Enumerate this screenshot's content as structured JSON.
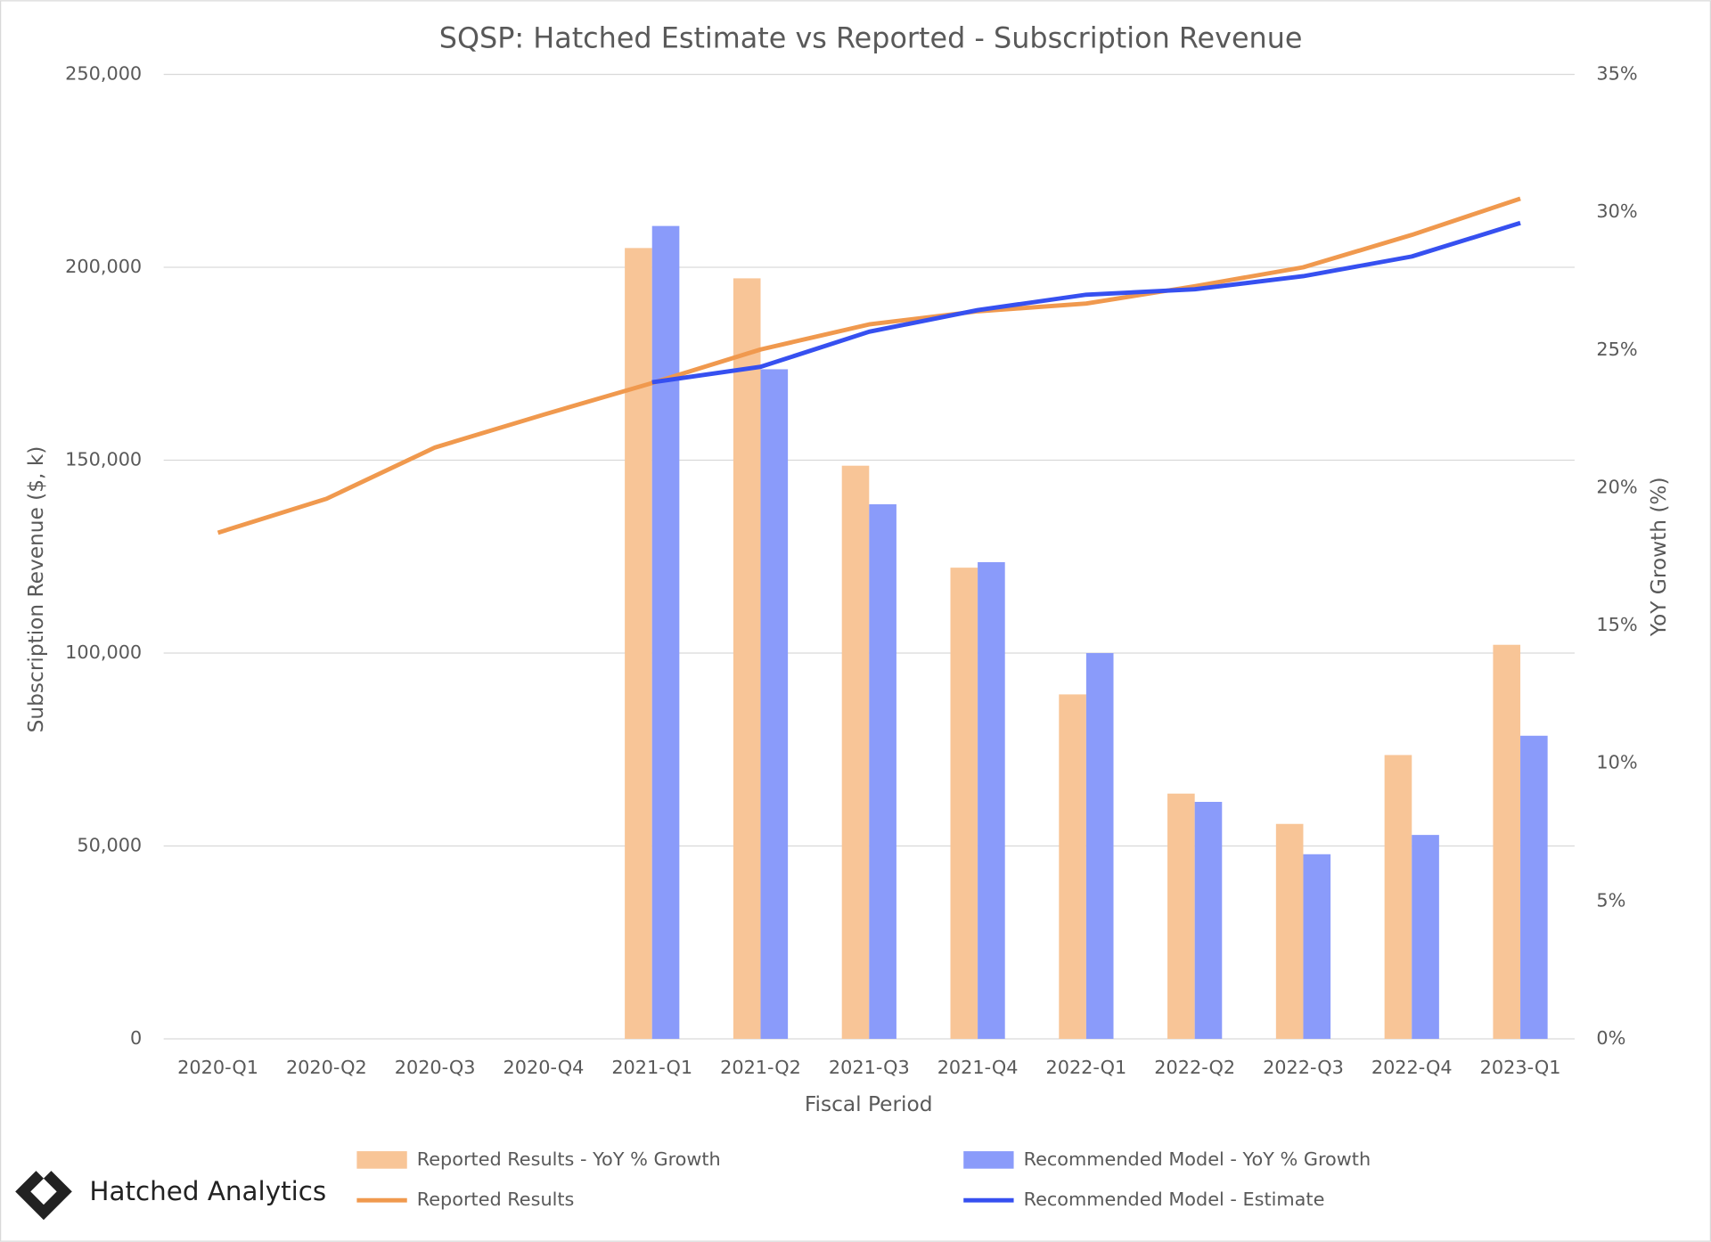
{
  "chart_data": {
    "type": "bar",
    "title": "SQSP: Hatched Estimate vs Reported - Subscription Revenue",
    "x_label": "Fiscal Period",
    "y_label": "Subscription Revenue ($, k)",
    "y2_label": "YoY Growth (%)",
    "categories": [
      "2020-Q1",
      "2020-Q2",
      "2020-Q3",
      "2020-Q4",
      "2021-Q1",
      "2021-Q2",
      "2021-Q3",
      "2021-Q4",
      "2022-Q1",
      "2022-Q2",
      "2022-Q3",
      "2022-Q4",
      "2023-Q1"
    ],
    "ylim": [
      0,
      250000
    ],
    "yticks": [
      0,
      {
        "value": 50000,
        "label": "50,000"
      },
      {
        "value": 100000,
        "label": "100,000"
      },
      {
        "value": 150000,
        "label": "150,000"
      },
      {
        "value": 200000,
        "label": "200,000"
      },
      {
        "value": 250000,
        "label": "250,000"
      }
    ],
    "y2lim": [
      0,
      35
    ],
    "y2ticks": [
      {
        "value": 0,
        "label": "0%"
      },
      {
        "value": 5,
        "label": "5%"
      },
      {
        "value": 10,
        "label": "10%"
      },
      {
        "value": 15,
        "label": "15%"
      },
      {
        "value": 20,
        "label": "20%"
      },
      {
        "value": 25,
        "label": "25%"
      },
      {
        "value": 30,
        "label": "30%"
      },
      {
        "value": 35,
        "label": "35%"
      }
    ],
    "grid": true,
    "series": [
      {
        "name": "Reported Results - YoY % Growth",
        "type": "bar",
        "axis": "y2",
        "color": "#f8c597",
        "values": [
          null,
          null,
          null,
          null,
          28.7,
          27.6,
          20.8,
          17.1,
          12.5,
          8.9,
          7.8,
          10.3,
          14.3
        ]
      },
      {
        "name": "Recommended Model - YoY % Growth",
        "type": "bar",
        "axis": "y2",
        "color": "#8a9bfa",
        "values": [
          null,
          null,
          null,
          null,
          29.5,
          24.3,
          19.4,
          17.3,
          14.0,
          8.6,
          6.7,
          7.4,
          11.0
        ]
      },
      {
        "name": "Reported Results",
        "type": "line",
        "color": "#f0994e",
        "values": [
          131200,
          140000,
          153300,
          161800,
          170000,
          178700,
          185200,
          188600,
          190600,
          195100,
          200000,
          208400,
          217800
        ]
      },
      {
        "name": "Recommended Model - Estimate",
        "type": "line",
        "color": "#3650f0",
        "values": [
          null,
          null,
          null,
          null,
          170200,
          174200,
          183300,
          188900,
          192900,
          194300,
          197700,
          202800,
          211500
        ]
      }
    ]
  },
  "logo_text": "Hatched Analytics"
}
